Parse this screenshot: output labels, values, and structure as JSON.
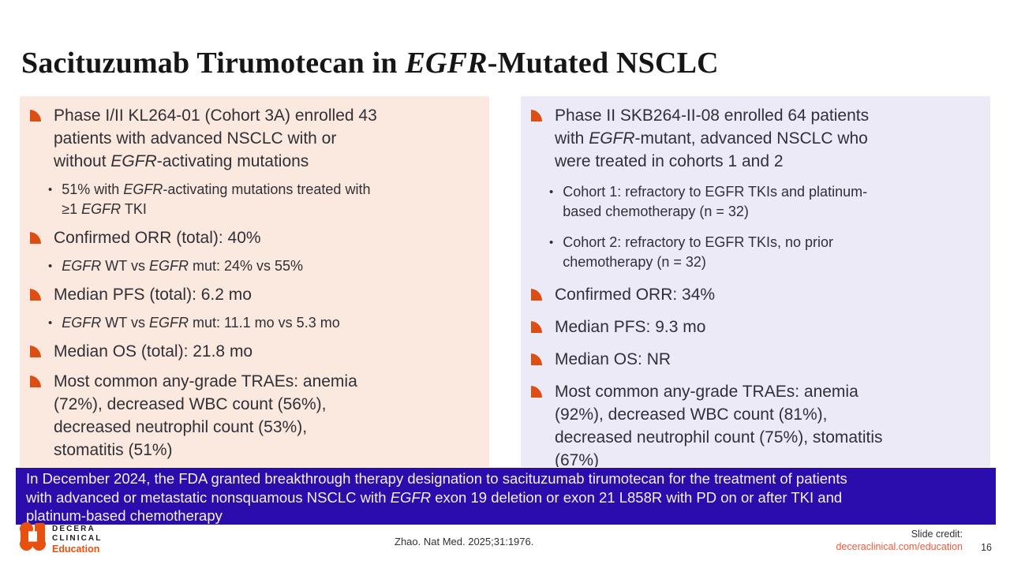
{
  "title": {
    "segments": [
      [
        "Sacituzumab Tirumotecan in ",
        0
      ],
      [
        "EGFR",
        1
      ],
      [
        "-Mutated NSCLC",
        0
      ]
    ]
  },
  "left_panel": {
    "items": [
      {
        "level": 1,
        "segments": [
          [
            "Phase I/II KL264-01 (Cohort 3A) enrolled 43\npatients with advanced NSCLC with or\nwithout ",
            0
          ],
          [
            "EGFR",
            1
          ],
          [
            "-activating mutations",
            0
          ]
        ]
      },
      {
        "level": 2,
        "segments": [
          [
            "51% with ",
            0
          ],
          [
            "EGFR",
            1
          ],
          [
            "-activating mutations treated with\n≥1 ",
            0
          ],
          [
            "EGFR",
            1
          ],
          [
            " TKI",
            0
          ]
        ]
      },
      {
        "level": 1,
        "segments": [
          [
            "Confirmed ORR (total): 40%",
            0
          ]
        ]
      },
      {
        "level": 2,
        "segments": [
          [
            "EGFR",
            1
          ],
          [
            " WT vs ",
            0
          ],
          [
            "EGFR",
            1
          ],
          [
            " mut: 24% vs 55%",
            0
          ]
        ]
      },
      {
        "level": 1,
        "segments": [
          [
            "Median PFS (total): 6.2 mo",
            0
          ]
        ]
      },
      {
        "level": 2,
        "segments": [
          [
            "EGFR",
            1
          ],
          [
            " WT vs ",
            0
          ],
          [
            "EGFR",
            1
          ],
          [
            " mut: 11.1 mo vs 5.3 mo",
            0
          ]
        ]
      },
      {
        "level": 1,
        "segments": [
          [
            "Median OS (total): 21.8 mo",
            0
          ]
        ]
      },
      {
        "level": 1,
        "segments": [
          [
            "Most common any-grade TRAEs: anemia\n(72%), decreased WBC count (56%),\ndecreased neutrophil count (53%),\nstomatitis (51%)",
            0
          ]
        ]
      }
    ]
  },
  "right_panel": {
    "items": [
      {
        "level": 1,
        "segments": [
          [
            "Phase II SKB264-II-08 enrolled 64 patients\nwith ",
            0
          ],
          [
            "EGFR",
            1
          ],
          [
            "-mutant, advanced NSCLC who\nwere treated in cohorts 1 and 2",
            0
          ]
        ]
      },
      {
        "level": 2,
        "segments": [
          [
            "Cohort 1: refractory to EGFR TKIs and platinum-\nbased chemotherapy (n = 32)",
            0
          ]
        ]
      },
      {
        "level": 2,
        "segments": [
          [
            "Cohort 2: refractory to EGFR TKIs, no prior\nchemotherapy (n = 32)",
            0
          ]
        ]
      },
      {
        "level": 1,
        "segments": [
          [
            "Confirmed ORR: 34%",
            0
          ]
        ]
      },
      {
        "level": 1,
        "segments": [
          [
            "Median PFS: 9.3 mo",
            0
          ]
        ]
      },
      {
        "level": 1,
        "segments": [
          [
            "Median OS: NR",
            0
          ]
        ]
      },
      {
        "level": 1,
        "segments": [
          [
            "Most common any-grade TRAEs: anemia\n(92%), decreased WBC count (81%),\ndecreased neutrophil count (75%), stomatitis\n(67%)",
            0
          ]
        ]
      }
    ]
  },
  "banner": {
    "segments": [
      [
        "In December 2024, the FDA granted breakthrough therapy designation to sacituzumab tirumotecan for the treatment of patients\nwith advanced or metastatic nonsquamous NSCLC with ",
        0
      ],
      [
        "EGFR",
        1
      ],
      [
        " exon 19 deletion or exon 21 L858R with PD on or after TKI and\nplatinum-based chemotherapy",
        0
      ]
    ]
  },
  "footer": {
    "logo": {
      "line1": "DECERA",
      "line2": "CLINICAL",
      "line3": "Education"
    },
    "citation": "Zhao. Nat Med. 2025;31:1976.",
    "credit_label": "Slide credit:",
    "credit_link": "deceraclinical.com/education",
    "page_number": "16"
  },
  "colors": {
    "accent_orange": "#DC4E14",
    "left_panel_bg": "#FBE8DF",
    "right_panel_bg": "#ECEAF7",
    "banner_bg": "#2A0DAC",
    "banner_text": "#F6EEE7",
    "link_orange": "#ED5B3C",
    "logo_orange": "#E8500F",
    "text_dark": "#303036",
    "title_color": "#161616"
  }
}
